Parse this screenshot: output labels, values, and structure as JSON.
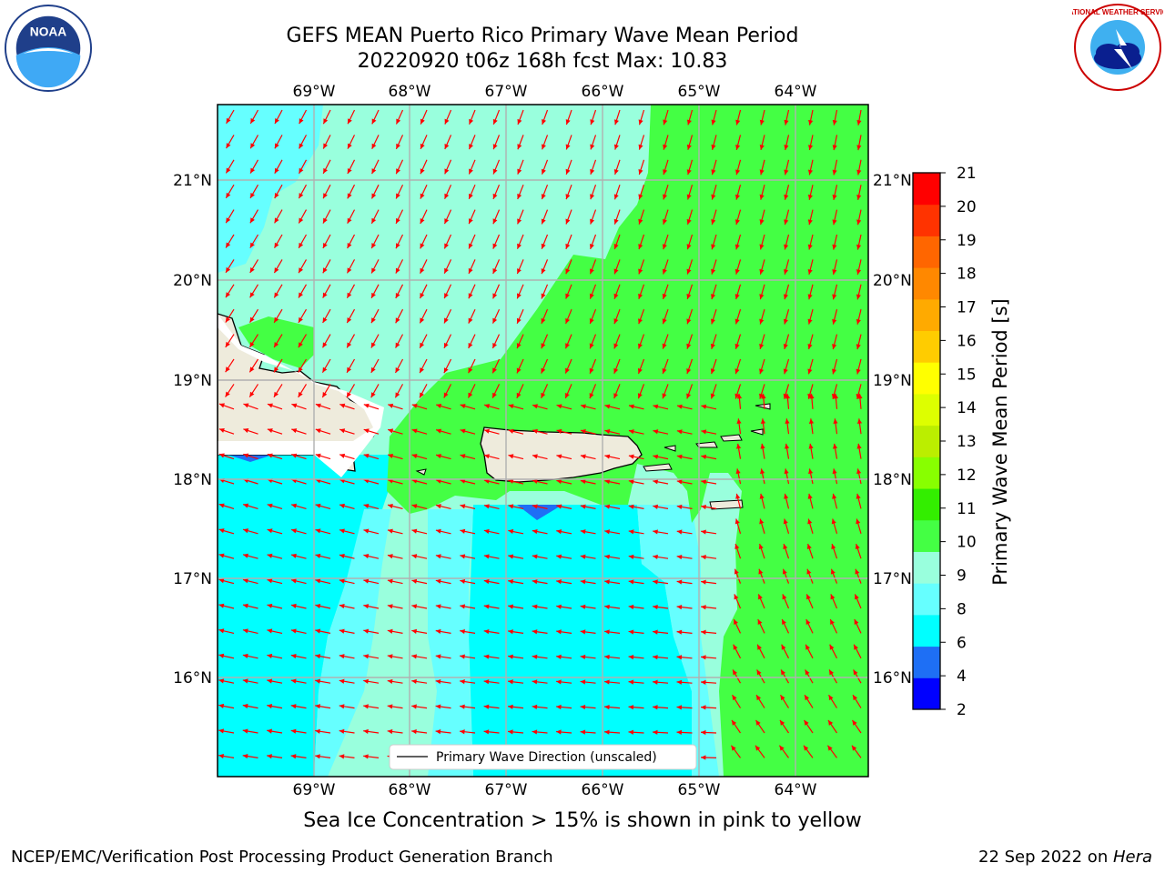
{
  "title_line1": "GEFS MEAN Puerto Rico Primary Wave Mean Period",
  "title_line2": "20220920 t06z 168h fcst   Max: 10.83",
  "lon_labels": [
    "69°W",
    "68°W",
    "67°W",
    "66°W",
    "65°W",
    "64°W"
  ],
  "lat_labels": [
    "21°N",
    "20°N",
    "19°N",
    "18°N",
    "17°N",
    "16°N"
  ],
  "legend_label": "Primary Wave Direction (unscaled)",
  "colorbar": {
    "label": "Primary Wave Mean Period [s]",
    "ticks": [
      "2",
      "4",
      "6",
      "8",
      "9",
      "10",
      "11",
      "12",
      "13",
      "14",
      "15",
      "16",
      "17",
      "18",
      "19",
      "20",
      "21"
    ],
    "colors": [
      "#0000ff",
      "#1e6ff5",
      "#00ffff",
      "#66ffff",
      "#99ffdd",
      "#44ff44",
      "#33ee00",
      "#88ff00",
      "#bbee00",
      "#ddff00",
      "#ffff00",
      "#ffcc00",
      "#ffaa00",
      "#ff8800",
      "#ff6600",
      "#ff3300",
      "#ff0000"
    ]
  },
  "note": "Sea Ice Concentration > 15% is shown in pink to yellow",
  "footer_left": "NCEP/EMC/Verification Post Processing Product Generation Branch",
  "footer_right_date": "22 Sep 2022 on ",
  "footer_right_host": "Hera",
  "logos": {
    "left": "noaa-logo",
    "right": "nws-logo"
  },
  "logo_text": {
    "noaa": "NOAA",
    "nws": "NATIONAL WEATHER SERVICE"
  },
  "colors": {
    "arrow": "#ff0000",
    "land": "#eeebdc",
    "grid": "#b0b0b0"
  }
}
